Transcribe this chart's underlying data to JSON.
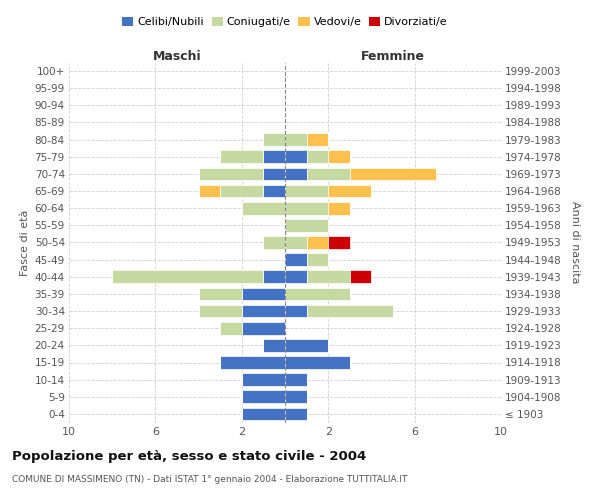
{
  "age_groups": [
    "100+",
    "95-99",
    "90-94",
    "85-89",
    "80-84",
    "75-79",
    "70-74",
    "65-69",
    "60-64",
    "55-59",
    "50-54",
    "45-49",
    "40-44",
    "35-39",
    "30-34",
    "25-29",
    "20-24",
    "15-19",
    "10-14",
    "5-9",
    "0-4"
  ],
  "birth_years": [
    "≤ 1903",
    "1904-1908",
    "1909-1913",
    "1914-1918",
    "1919-1923",
    "1924-1928",
    "1929-1933",
    "1934-1938",
    "1939-1943",
    "1944-1948",
    "1949-1953",
    "1954-1958",
    "1959-1963",
    "1964-1968",
    "1969-1973",
    "1974-1978",
    "1979-1983",
    "1984-1988",
    "1989-1993",
    "1994-1998",
    "1999-2003"
  ],
  "male": {
    "celibi": [
      0,
      0,
      0,
      0,
      0,
      1,
      1,
      1,
      0,
      0,
      0,
      0,
      1,
      2,
      2,
      2,
      1,
      3,
      2,
      2,
      2
    ],
    "coniugati": [
      0,
      0,
      0,
      0,
      1,
      2,
      3,
      2,
      2,
      0,
      1,
      0,
      7,
      2,
      2,
      1,
      0,
      0,
      0,
      0,
      0
    ],
    "vedovi": [
      0,
      0,
      0,
      0,
      0,
      0,
      0,
      1,
      0,
      0,
      0,
      0,
      0,
      0,
      0,
      0,
      0,
      0,
      0,
      0,
      0
    ],
    "divorziati": [
      0,
      0,
      0,
      0,
      0,
      0,
      0,
      0,
      0,
      0,
      0,
      0,
      0,
      0,
      0,
      0,
      0,
      0,
      0,
      0,
      0
    ]
  },
  "female": {
    "nubili": [
      0,
      0,
      0,
      0,
      0,
      1,
      1,
      0,
      0,
      0,
      0,
      1,
      1,
      0,
      1,
      0,
      2,
      3,
      1,
      1,
      1
    ],
    "coniugate": [
      0,
      0,
      0,
      0,
      1,
      1,
      2,
      2,
      2,
      2,
      1,
      1,
      2,
      3,
      4,
      0,
      0,
      0,
      0,
      0,
      0
    ],
    "vedove": [
      0,
      0,
      0,
      0,
      1,
      1,
      4,
      2,
      1,
      0,
      1,
      0,
      0,
      0,
      0,
      0,
      0,
      0,
      0,
      0,
      0
    ],
    "divorziate": [
      0,
      0,
      0,
      0,
      0,
      0,
      0,
      0,
      0,
      0,
      1,
      0,
      1,
      0,
      0,
      0,
      0,
      0,
      0,
      0,
      0
    ]
  },
  "colors": {
    "celibi": "#4472c4",
    "coniugati": "#c5d9a0",
    "vedovi": "#ffc04d",
    "divorziati": "#cc0000"
  },
  "xlim": 10,
  "title": "Popolazione per età, sesso e stato civile - 2004",
  "subtitle": "COMUNE DI MASSIMENO (TN) - Dati ISTAT 1° gennaio 2004 - Elaborazione TUTTITALIA.IT",
  "ylabel_left": "Fasce di età",
  "ylabel_right": "Anni di nascita",
  "xlabel_left": "Maschi",
  "xlabel_right": "Femmine",
  "background_color": "#ffffff",
  "grid_color": "#cccccc",
  "bar_height": 0.75
}
